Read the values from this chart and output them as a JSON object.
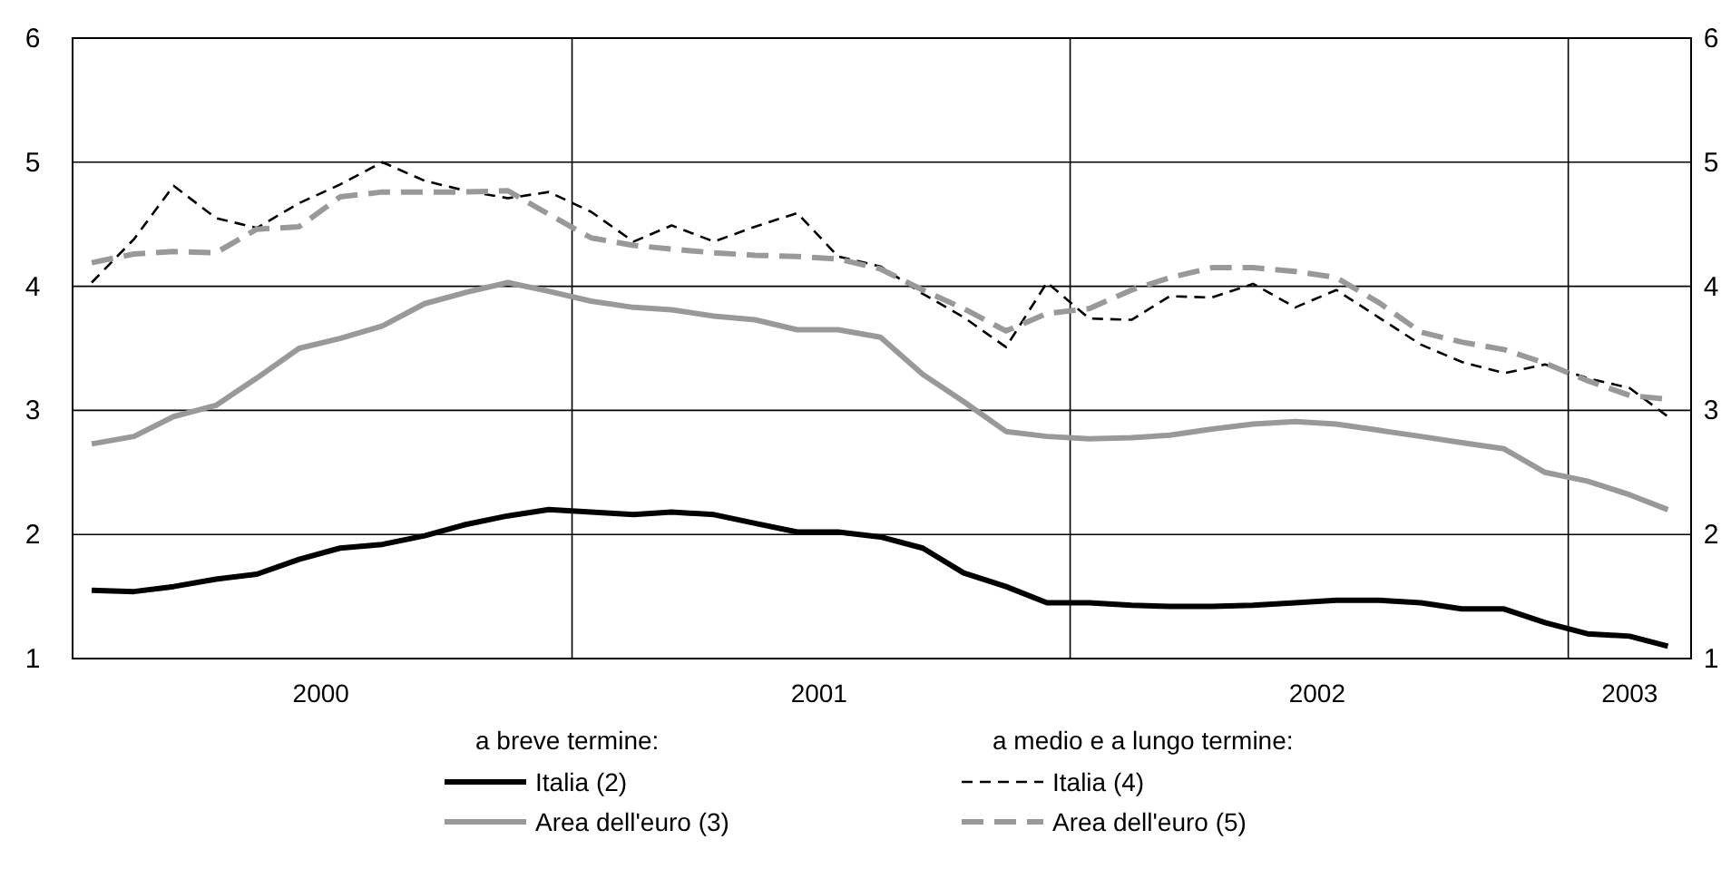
{
  "chart_data": {
    "type": "line",
    "x": [
      "2000-01-15",
      "2000-02-15",
      "2000-03-15",
      "2000-04-15",
      "2000-05-15",
      "2000-06-15",
      "2000-07-15",
      "2000-08-15",
      "2000-09-15",
      "2000-10-15",
      "2000-11-15",
      "2000-12-15",
      "2001-01-15",
      "2001-02-15",
      "2001-03-15",
      "2001-04-15",
      "2001-05-15",
      "2001-06-15",
      "2001-07-15",
      "2001-08-15",
      "2001-09-15",
      "2001-10-15",
      "2001-11-15",
      "2001-12-15",
      "2002-01-15",
      "2002-02-15",
      "2002-03-15",
      "2002-04-15",
      "2002-05-15",
      "2002-06-15",
      "2002-07-15",
      "2002-08-15",
      "2002-09-15",
      "2002-10-15",
      "2002-11-15",
      "2002-12-15",
      "2003-01-15",
      "2003-02-15",
      "2003-03-15"
    ],
    "series": [
      {
        "name": "Italia (2)",
        "color": "#000000",
        "line_style": "solid",
        "values": [
          1.55,
          1.54,
          1.58,
          1.64,
          1.68,
          1.8,
          1.89,
          1.92,
          1.99,
          2.08,
          2.15,
          2.2,
          2.18,
          2.16,
          2.18,
          2.16,
          2.09,
          2.02,
          2.02,
          1.98,
          1.89,
          1.69,
          1.58,
          1.45,
          1.45,
          1.43,
          1.42,
          1.42,
          1.43,
          1.45,
          1.47,
          1.47,
          1.45,
          1.4,
          1.4,
          1.29,
          1.2,
          1.18,
          1.1
        ]
      },
      {
        "name": "Area dell'euro (3)",
        "color": "#999999",
        "line_style": "solid",
        "values": [
          2.73,
          2.79,
          2.95,
          3.04,
          3.26,
          3.5,
          3.58,
          3.68,
          3.86,
          3.95,
          4.03,
          3.96,
          3.88,
          3.83,
          3.81,
          3.76,
          3.73,
          3.65,
          3.65,
          3.59,
          3.29,
          3.07,
          2.83,
          2.79,
          2.77,
          2.78,
          2.8,
          2.85,
          2.89,
          2.91,
          2.89,
          2.84,
          2.79,
          2.74,
          2.69,
          2.5,
          2.43,
          2.32,
          2.2
        ]
      },
      {
        "name": "Italia (4)",
        "color": "#000000",
        "line_style": "dashed",
        "values": [
          4.03,
          4.38,
          4.81,
          4.55,
          4.47,
          4.67,
          4.82,
          5.0,
          4.85,
          4.77,
          4.71,
          4.76,
          4.6,
          4.36,
          4.49,
          4.36,
          4.48,
          4.59,
          4.24,
          4.16,
          3.94,
          3.75,
          3.51,
          4.03,
          3.74,
          3.73,
          3.92,
          3.91,
          4.02,
          3.83,
          3.97,
          3.75,
          3.53,
          3.39,
          3.3,
          3.37,
          3.26,
          3.18,
          2.95
        ]
      },
      {
        "name": "Area dell'euro (5)",
        "color": "#999999",
        "line_style": "dashed",
        "values": [
          4.19,
          4.26,
          4.28,
          4.27,
          4.46,
          4.48,
          4.72,
          4.76,
          4.76,
          4.76,
          4.77,
          4.58,
          4.39,
          4.33,
          4.3,
          4.27,
          4.25,
          4.24,
          4.22,
          4.14,
          3.97,
          3.82,
          3.64,
          3.78,
          3.82,
          3.97,
          4.07,
          4.15,
          4.15,
          4.12,
          4.07,
          3.87,
          3.63,
          3.55,
          3.49,
          3.38,
          3.24,
          3.12,
          3.09
        ]
      }
    ],
    "xlim": [
      "2000-01-01",
      "2003-04-01"
    ],
    "xticks": [
      {
        "value": "2000-07-01",
        "label": "2000"
      },
      {
        "value": "2001-07-01",
        "label": "2001"
      },
      {
        "value": "2002-07-01",
        "label": "2002"
      },
      {
        "value": "2003-02-15",
        "label": "2003"
      }
    ],
    "ylim": [
      1,
      6
    ],
    "yticks": [
      1,
      2,
      3,
      4,
      5,
      6
    ],
    "y2lim": [
      1,
      6
    ],
    "y2ticks": [
      1,
      2,
      3,
      4,
      5,
      6
    ],
    "grid": "y",
    "ref_lines": [
      {
        "axis": "x",
        "value": "2001-01-01",
        "color": "#000000"
      },
      {
        "axis": "x",
        "value": "2002-01-01",
        "color": "#000000"
      },
      {
        "axis": "x",
        "value": "2003-01-01",
        "color": "#000000"
      }
    ],
    "legend": "bottom",
    "annotations": [
      "a breve termine:",
      "a medio e a lungo termine:"
    ],
    "marker": "none"
  }
}
